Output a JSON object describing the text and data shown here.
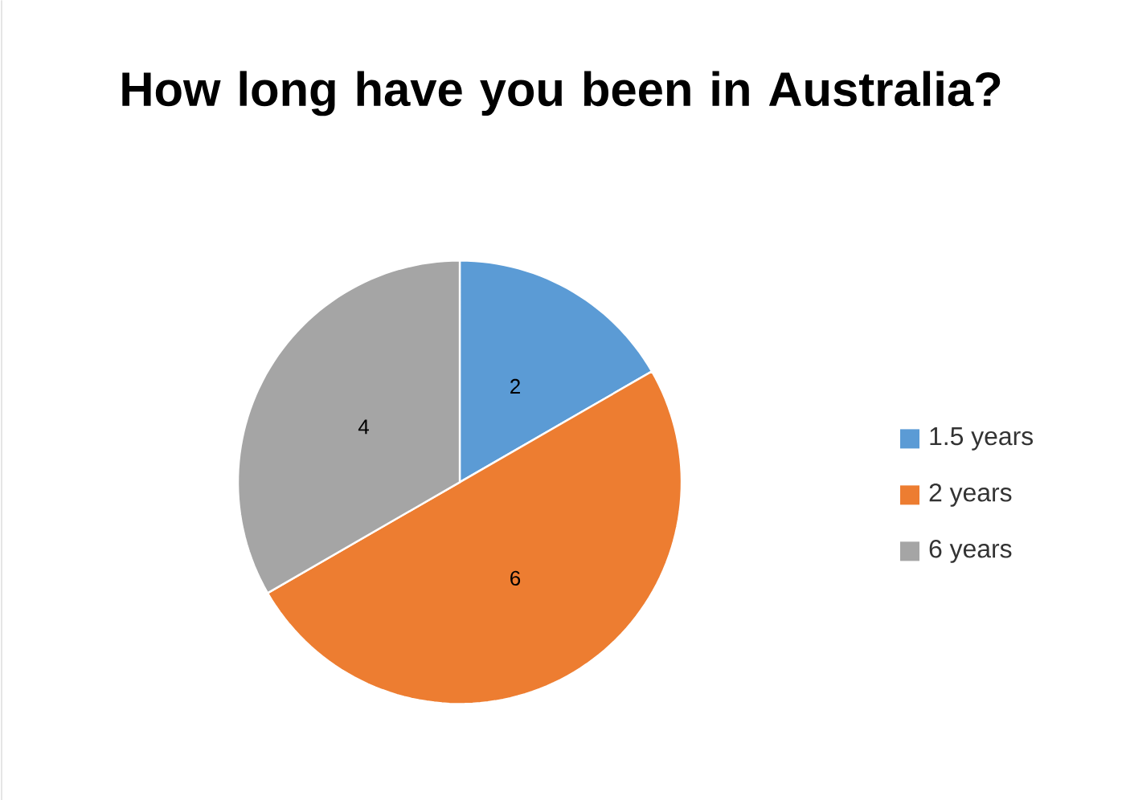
{
  "chart_data": {
    "type": "pie",
    "title": "How long have you been in Australia?",
    "categories": [
      "1.5 years",
      "2 years",
      "6 years"
    ],
    "values": [
      2,
      6,
      4
    ],
    "colors": [
      "#5b9bd5",
      "#ed7d31",
      "#a5a5a5"
    ],
    "data_labels": true,
    "legend": "right"
  }
}
